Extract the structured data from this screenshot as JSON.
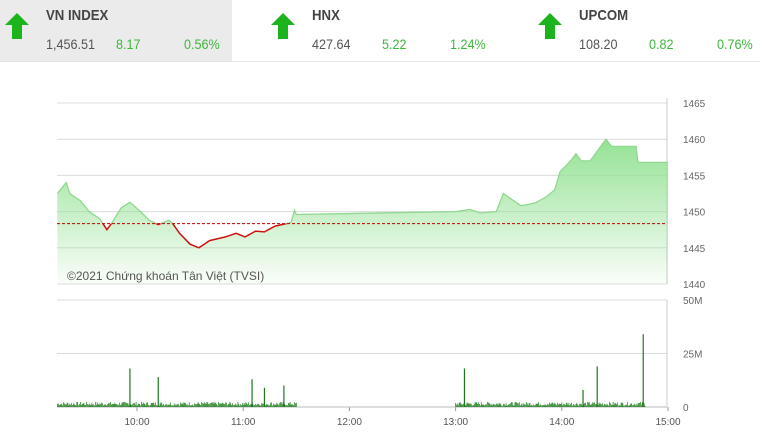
{
  "indices": [
    {
      "name": "VN INDEX",
      "value": "1,456.51",
      "change": "8.17",
      "percent": "0.56%",
      "direction": "up",
      "active": true
    },
    {
      "name": "HNX",
      "value": "427.64",
      "change": "5.22",
      "percent": "1.24%",
      "direction": "up",
      "active": false
    },
    {
      "name": "UPCOM",
      "value": "108.20",
      "change": "0.82",
      "percent": "0.76%",
      "direction": "up",
      "active": false
    }
  ],
  "colors": {
    "up": "#1db31d",
    "down": "#d01010",
    "fill": "#8fe08f",
    "reference": "#c00000",
    "volume": "#1a7a1a"
  },
  "chart_data": [
    {
      "type": "area",
      "title": "",
      "watermark": "©2021 Chứng khoán Tân Việt (TVSI)",
      "ylim": [
        1440,
        1465
      ],
      "yticks": [
        "1465",
        "1460",
        "1455",
        "1450",
        "1445",
        "1440"
      ],
      "reference": 1448.34,
      "grid": true,
      "points": [
        [
          "09:15",
          1452.5
        ],
        [
          "09:20",
          1454
        ],
        [
          "09:22",
          1452.5
        ],
        [
          "09:28",
          1451.5
        ],
        [
          "09:33",
          1450
        ],
        [
          "09:39",
          1449
        ],
        [
          "09:43",
          1447.5
        ],
        [
          "09:46",
          1448.5
        ],
        [
          "09:51",
          1450.5
        ],
        [
          "09:56",
          1451.3
        ],
        [
          "10:02",
          1450
        ],
        [
          "10:07",
          1448.8
        ],
        [
          "10:12",
          1448.2
        ],
        [
          "10:18",
          1448.8
        ],
        [
          "10:20",
          1448.4
        ],
        [
          "10:24",
          1447
        ],
        [
          "10:30",
          1445.5
        ],
        [
          "10:35",
          1445
        ],
        [
          "10:41",
          1446
        ],
        [
          "10:50",
          1446.5
        ],
        [
          "10:56",
          1447
        ],
        [
          "11:01",
          1446.5
        ],
        [
          "11:07",
          1447.3
        ],
        [
          "11:12",
          1447.2
        ],
        [
          "11:18",
          1448
        ],
        [
          "11:27",
          1448.5
        ],
        [
          "11:29",
          1450.2
        ],
        [
          "11:30",
          1449.6
        ],
        [
          "13:00",
          1450
        ],
        [
          "13:08",
          1450.3
        ],
        [
          "13:14",
          1449.8
        ],
        [
          "13:23",
          1450
        ],
        [
          "13:27",
          1452.5
        ],
        [
          "13:31",
          1451.8
        ],
        [
          "13:37",
          1450.8
        ],
        [
          "13:45",
          1451.2
        ],
        [
          "13:51",
          1452
        ],
        [
          "13:56",
          1453
        ],
        [
          "13:59",
          1455.5
        ],
        [
          "14:05",
          1457
        ],
        [
          "14:08",
          1458
        ],
        [
          "14:11",
          1457
        ],
        [
          "14:16",
          1457
        ],
        [
          "14:22",
          1459
        ],
        [
          "14:25",
          1460
        ],
        [
          "14:28",
          1459
        ],
        [
          "14:42",
          1459
        ],
        [
          "14:43",
          1456.8
        ],
        [
          "15:00",
          1456.8
        ]
      ]
    },
    {
      "type": "bar",
      "title": "",
      "ylim": [
        0,
        50
      ],
      "yticks": [
        "50M",
        "25M",
        "0"
      ],
      "xticks": [
        "10:00",
        "11:00",
        "12:00",
        "13:00",
        "14:00",
        "15:00"
      ],
      "unit": "M",
      "base_volume": 2,
      "spikes": [
        [
          "09:56",
          18
        ],
        [
          "10:12",
          14
        ],
        [
          "11:05",
          13
        ],
        [
          "11:12",
          9
        ],
        [
          "11:23",
          10
        ],
        [
          "13:05",
          18
        ],
        [
          "14:12",
          8
        ],
        [
          "14:20",
          19
        ],
        [
          "14:46",
          34
        ]
      ]
    }
  ]
}
